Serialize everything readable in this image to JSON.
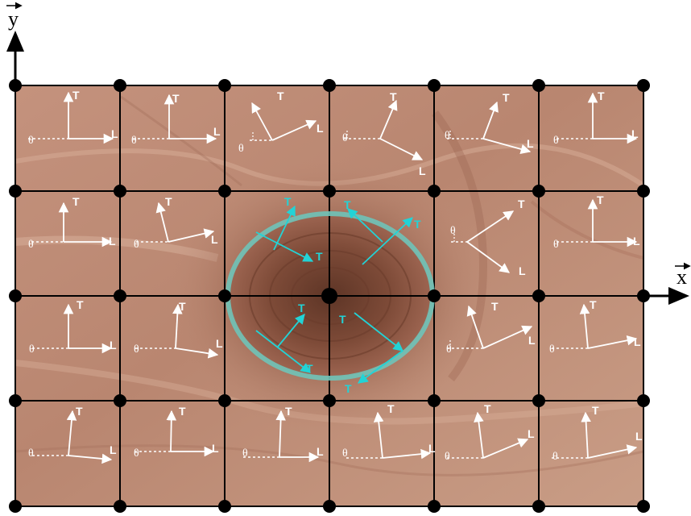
{
  "axes": {
    "x_label": "x",
    "y_label": "y"
  },
  "labels": {
    "longitudinal": "L",
    "tangential": "T",
    "angle": "θ"
  },
  "colors": {
    "wood_light": "#c9977f",
    "wood_mid": "#b9826a",
    "wood_dark": "#7d4a36",
    "grid": "#000000",
    "arrow_white": "#ffffff",
    "knot_ring": "#6fc3b8",
    "knot_arrow": "#22d3d6"
  },
  "grid": {
    "columns": 6,
    "rows": 4
  }
}
